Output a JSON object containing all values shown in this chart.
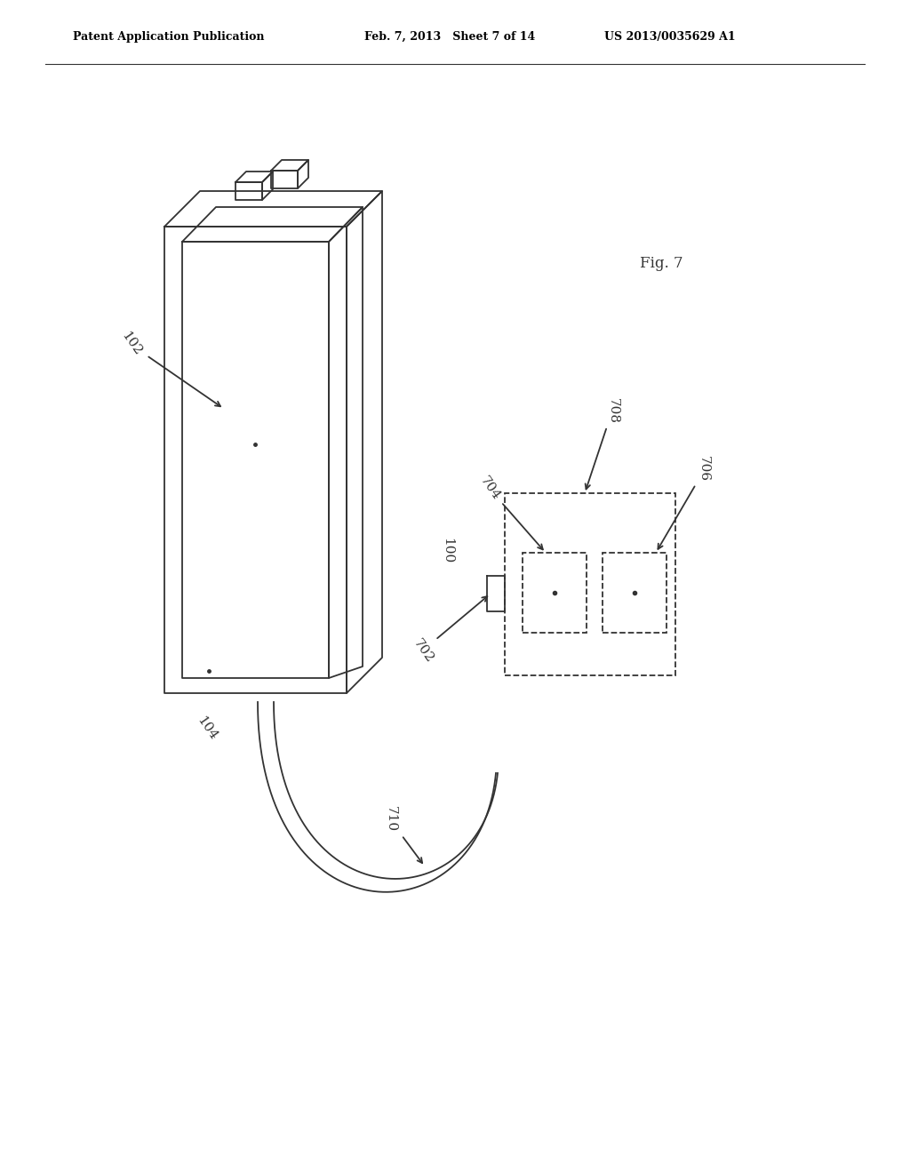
{
  "bg_color": "#ffffff",
  "line_color": "#333333",
  "header_left": "Patent Application Publication",
  "header_mid": "Feb. 7, 2013   Sheet 7 of 14",
  "header_right": "US 2013/0035629 A1",
  "fig_label": "Fig. 7",
  "label_102": "102",
  "label_100": "100",
  "label_104": "104",
  "label_702": "702",
  "label_704": "704",
  "label_706": "706",
  "label_708": "708",
  "label_710": "710"
}
